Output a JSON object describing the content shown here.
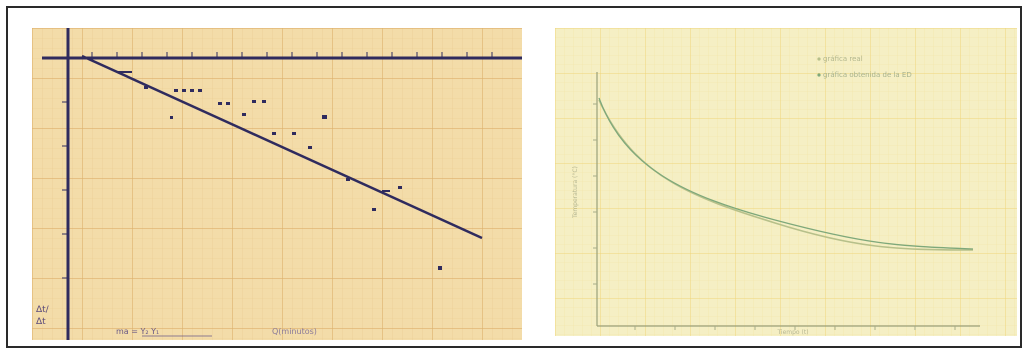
{
  "figure": {
    "left_photo": {
      "name": "handwritten linear fit on graph paper",
      "paper_color": "#f3dca9",
      "grid_color": "#e2b56e",
      "ink_color": "#2f2b5e",
      "axis_label": "Δt/\nΔt",
      "bottom_note_left": "ma = Y₂  Y₁",
      "bottom_note_right": "Q(minutos)"
    },
    "right_photo": {
      "name": "handwritten decay curves on graph paper",
      "paper_color": "#f5efc4",
      "grid_color": "#f0d982",
      "legend": [
        {
          "label": "gráfica real",
          "color": "#b7c08a"
        },
        {
          "label": "gráfica obtenida de la ED",
          "color": "#7ea87a"
        }
      ],
      "ylabel": "Temperatura (°C)",
      "xlabel": "Tiempo (t)"
    }
  }
}
